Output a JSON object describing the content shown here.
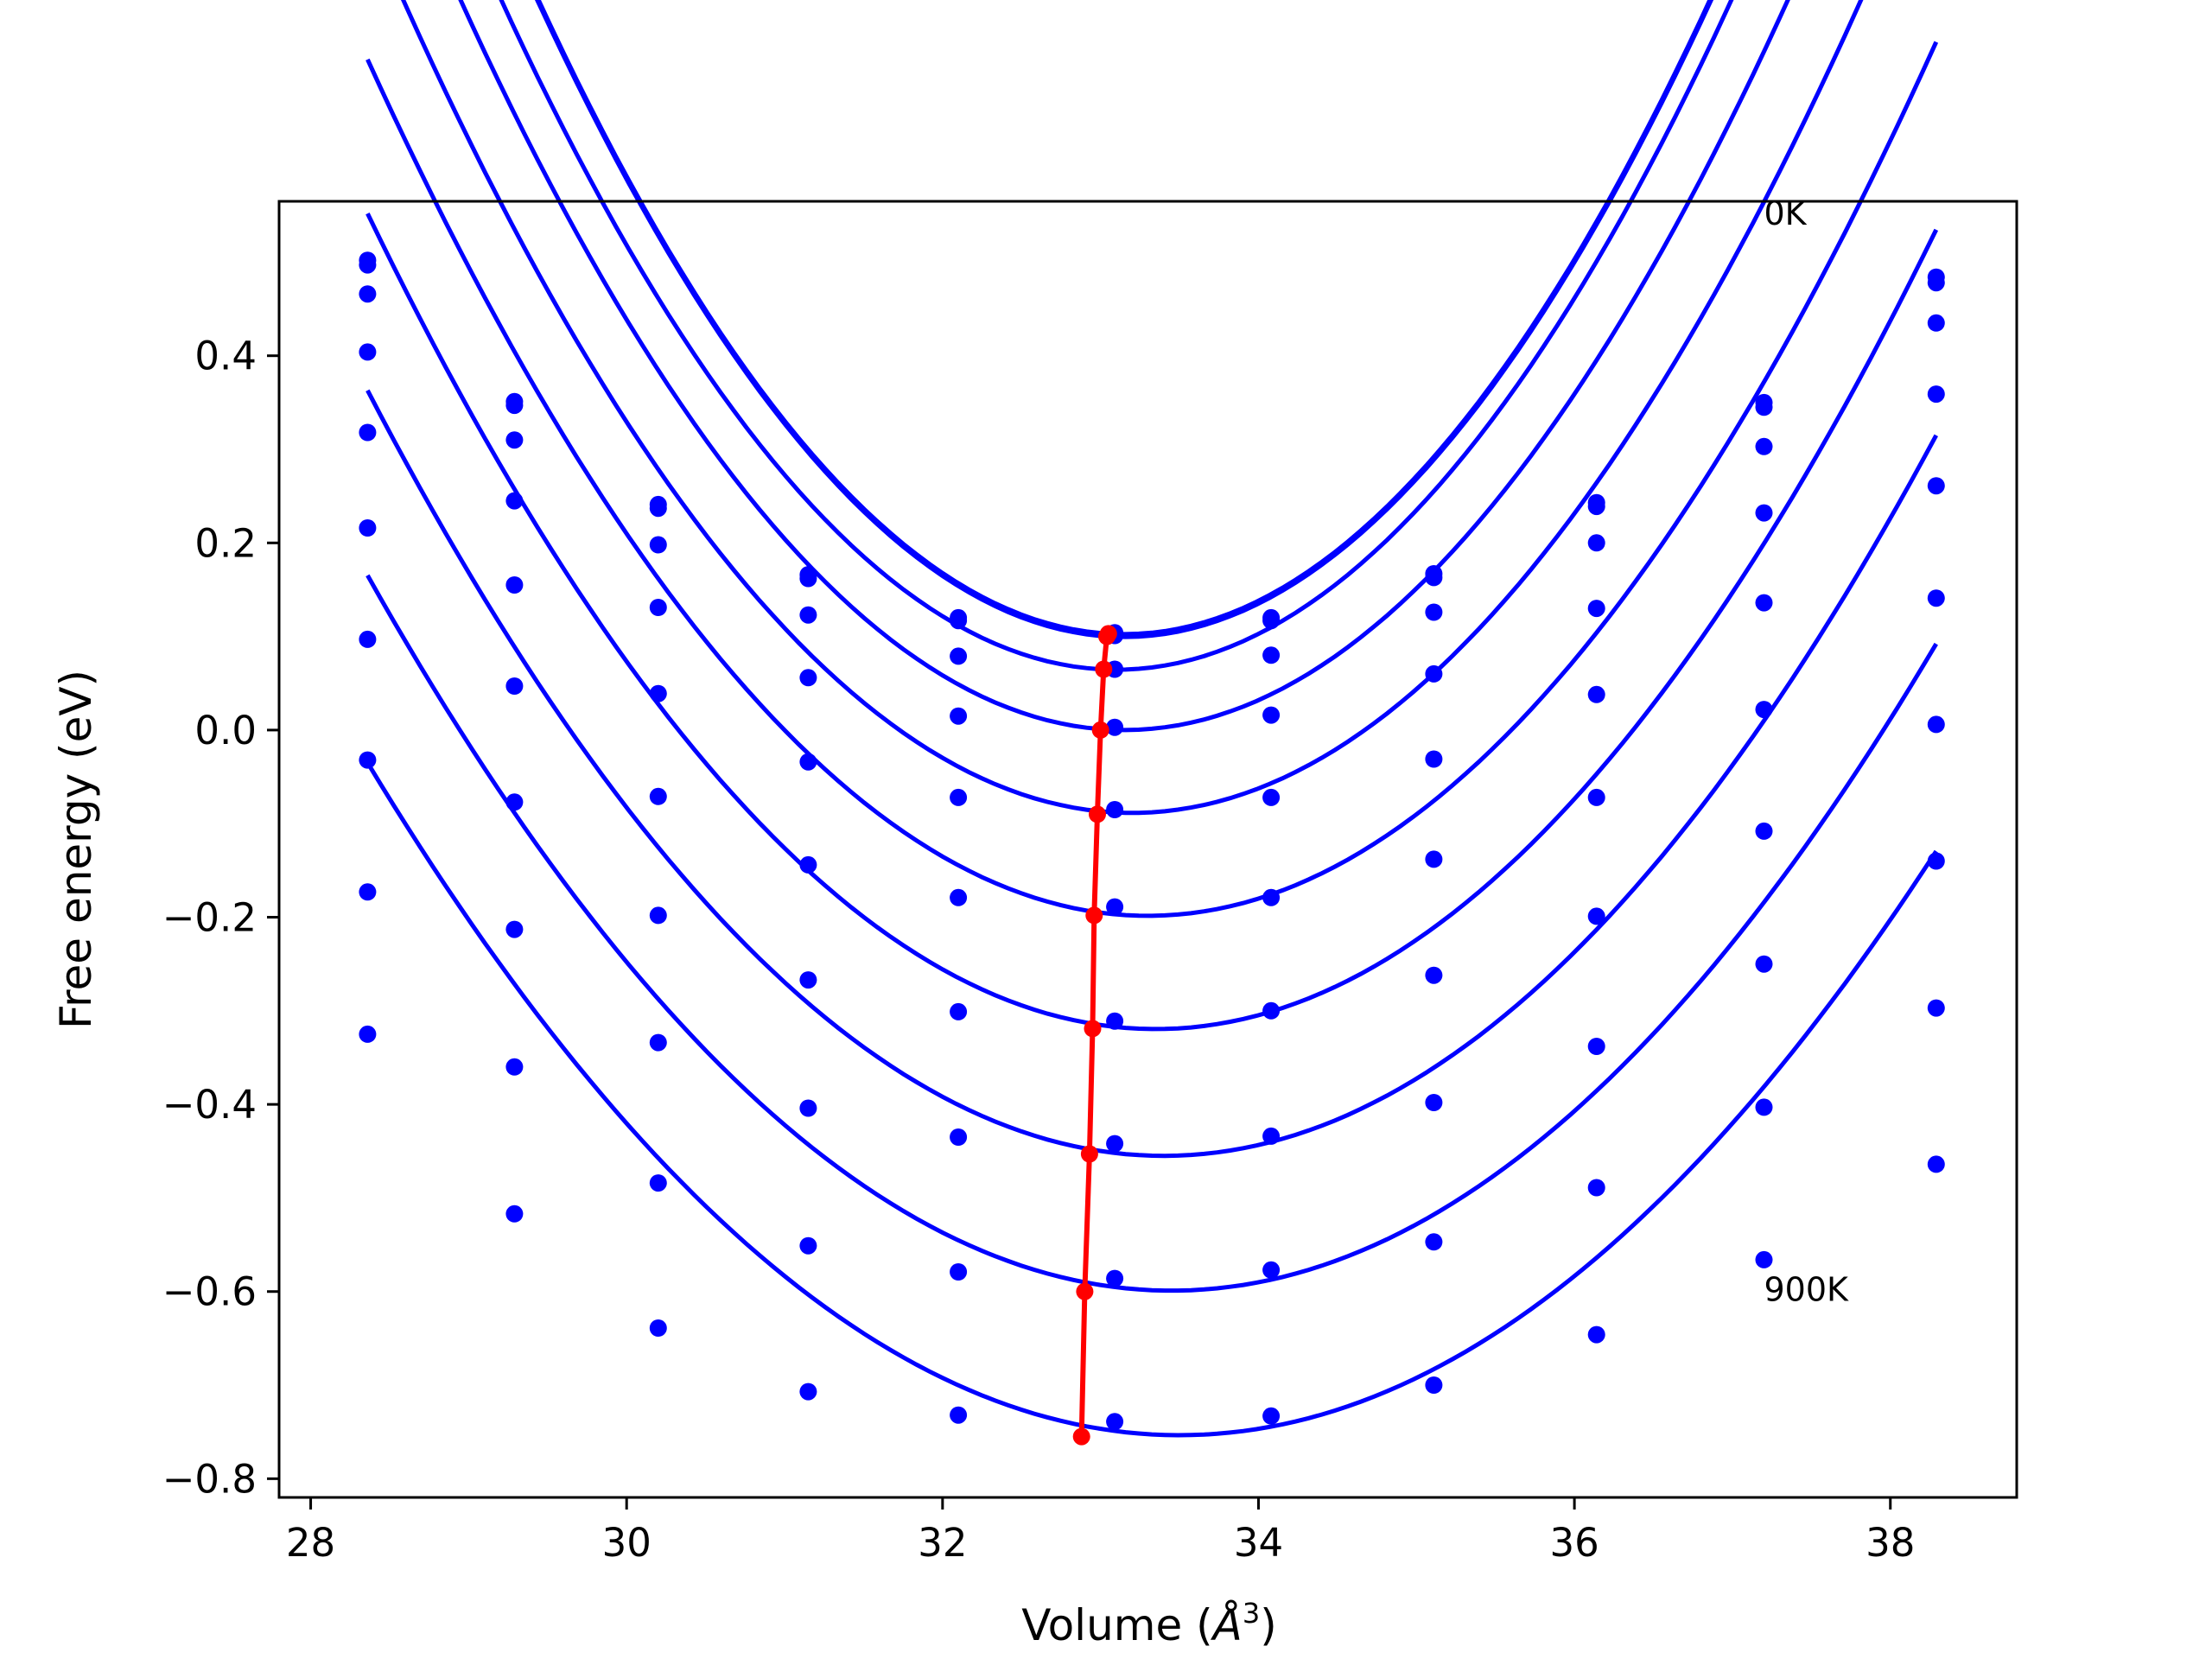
{
  "chart_data": {
    "type": "line",
    "xlabel_prefix": "Volume (",
    "xlabel_symbol": "Å",
    "xlabel_exponent": "3",
    "xlabel_suffix": ")",
    "ylabel": "Free energy (eV)",
    "xlim": [
      27.8,
      38.8
    ],
    "ylim": [
      -0.82,
      0.565
    ],
    "xticks": [
      28,
      30,
      32,
      34,
      36,
      38
    ],
    "xtick_labels": [
      "28",
      "30",
      "32",
      "34",
      "36",
      "38"
    ],
    "yticks": [
      -0.8,
      -0.6,
      -0.4,
      -0.2,
      0.0,
      0.2,
      0.4
    ],
    "ytick_labels": [
      "−0.8",
      "−0.6",
      "−0.4",
      "−0.2",
      "0.0",
      "0.2",
      "0.4"
    ],
    "grid": false,
    "colors": {
      "curves": "#0000ff",
      "points": "#0000ff",
      "minima": "#ff0000"
    },
    "x": [
      28.36,
      29.29,
      30.2,
      31.15,
      32.1,
      33.09,
      34.08,
      35.11,
      36.14,
      37.2,
      38.29
    ],
    "series": [
      {
        "values": [
          0.502,
          0.351,
          0.241,
          0.166,
          0.12,
          0.104,
          0.12,
          0.167,
          0.243,
          0.35,
          0.484
        ],
        "fit": {
          "a": 0.1025,
          "b": 0.0493,
          "x0": 33.15
        }
      },
      {
        "values": [
          0.497,
          0.347,
          0.237,
          0.162,
          0.117,
          0.101,
          0.117,
          0.163,
          0.239,
          0.345,
          0.478
        ],
        "fit": {
          "a": 0.0995,
          "b": 0.0493,
          "x0": 33.15
        }
      },
      {
        "values": [
          0.466,
          0.31,
          0.198,
          0.123,
          0.079,
          0.065,
          0.08,
          0.126,
          0.2,
          0.303,
          0.435
        ],
        "fit": {
          "a": 0.0645,
          "b": 0.0472,
          "x0": 33.1
        }
      },
      {
        "values": [
          0.404,
          0.245,
          0.131,
          0.056,
          0.015,
          0.003,
          0.016,
          0.06,
          0.13,
          0.232,
          0.359
        ],
        "fit": {
          "a": 0.0,
          "b": 0.0442,
          "x0": 33.15
        }
      },
      {
        "values": [
          0.318,
          0.155,
          0.039,
          -0.034,
          -0.072,
          -0.085,
          -0.072,
          -0.031,
          0.038,
          0.136,
          0.261
        ],
        "fit": {
          "a": -0.0885,
          "b": 0.0408,
          "x0": 33.2
        }
      },
      {
        "values": [
          0.216,
          0.047,
          -0.071,
          -0.144,
          -0.179,
          -0.189,
          -0.179,
          -0.138,
          -0.072,
          0.022,
          0.141
        ],
        "fit": {
          "a": -0.1985,
          "b": 0.0375,
          "x0": 33.3
        }
      },
      {
        "values": [
          0.097,
          -0.077,
          -0.198,
          -0.267,
          -0.301,
          -0.311,
          -0.3,
          -0.262,
          -0.199,
          -0.108,
          0.006
        ],
        "fit": {
          "a": -0.3195,
          "b": 0.035,
          "x0": 33.35
        }
      },
      {
        "values": [
          -0.032,
          -0.213,
          -0.334,
          -0.404,
          -0.435,
          -0.442,
          -0.434,
          -0.398,
          -0.338,
          -0.25,
          -0.14
        ],
        "fit": {
          "a": -0.455,
          "b": 0.0322,
          "x0": 33.4
        }
      },
      {
        "values": [
          -0.173,
          -0.36,
          -0.484,
          -0.551,
          -0.579,
          -0.586,
          -0.577,
          -0.547,
          -0.489,
          -0.403,
          -0.297
        ],
        "fit": {
          "a": -0.599,
          "b": 0.0295,
          "x0": 33.45
        }
      },
      {
        "values": [
          -0.325,
          -0.517,
          -0.639,
          -0.707,
          -0.732,
          -0.739,
          -0.733,
          -0.7,
          -0.646,
          -0.566,
          -0.464
        ],
        "fit": {
          "a": -0.7535,
          "b": 0.0272,
          "x0": 33.5
        }
      }
    ],
    "minima": {
      "x": [
        33.05,
        33.04,
        33.02,
        33.0,
        32.98,
        32.96,
        32.95,
        32.93,
        32.9,
        32.88
      ],
      "y": [
        0.103,
        0.1,
        0.065,
        0.0,
        -0.09,
        -0.198,
        -0.319,
        -0.453,
        -0.6,
        -0.755
      ]
    },
    "annotations": [
      {
        "text": "0K",
        "x": 37.2,
        "y": 0.54
      },
      {
        "text": "900K",
        "x": 37.2,
        "y": -0.61
      }
    ]
  }
}
